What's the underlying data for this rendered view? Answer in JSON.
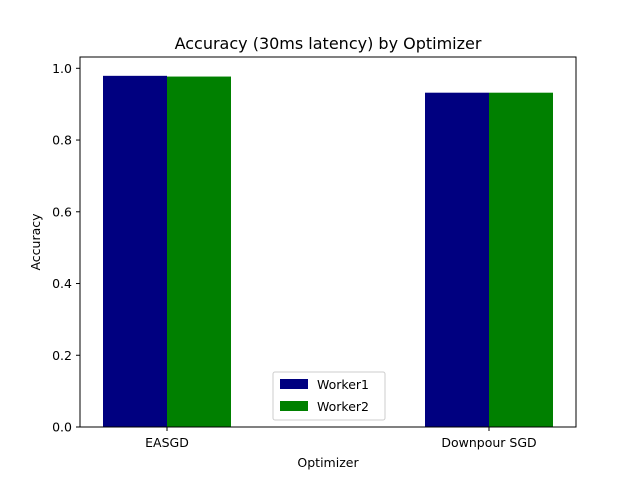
{
  "chart_data": {
    "type": "bar",
    "title": "Accuracy (30ms latency) by Optimizer",
    "xlabel": "Optimizer",
    "ylabel": "Accuracy",
    "categories": [
      "EASGD",
      "Downpour SGD"
    ],
    "series": [
      {
        "name": "Worker1",
        "values": [
          0.979,
          0.932
        ],
        "color": "#000080"
      },
      {
        "name": "Worker2",
        "values": [
          0.977,
          0.932
        ],
        "color": "#008000"
      }
    ],
    "ylim": [
      0,
      1.0
    ],
    "yticks": [
      "0.0",
      "0.2",
      "0.4",
      "0.6",
      "0.8",
      "1.0"
    ],
    "grid": false,
    "legend_position": "lower-center"
  }
}
